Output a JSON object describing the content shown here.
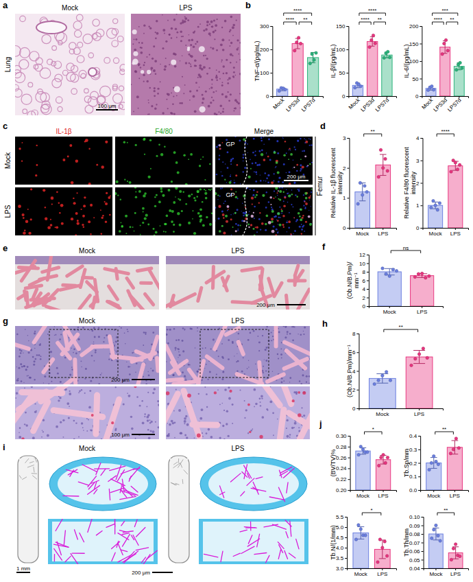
{
  "panel_letters": [
    "a",
    "b",
    "c",
    "d",
    "e",
    "f",
    "g",
    "h",
    "i",
    "j"
  ],
  "images": [
    {
      "row_label": "Lung",
      "titles": [
        "Mock",
        "LPS"
      ],
      "scale_bar": "100 μm"
    },
    {
      "channels": [
        "IL-1β",
        "F4/80",
        "Merge"
      ],
      "rows": [
        "Mock",
        "LPS"
      ],
      "tissue": "Femur",
      "region": "GP",
      "scale_bar": "200 μm"
    },
    {
      "titles": [
        "Mock",
        "LPS"
      ],
      "scale_bar": "200 μm"
    },
    {
      "titles": [
        "Mock",
        "LPS"
      ],
      "scale_bars": [
        "200 μm",
        "100 μm"
      ]
    },
    {
      "titles": [
        "Mock",
        "LPS"
      ],
      "scale_bars": [
        "1 mm",
        "200 μm"
      ]
    }
  ],
  "chart_data": [
    {
      "type": "bar",
      "y_label": "TNF-α/(pg/mL)",
      "categories": [
        "Mock",
        "LPS3d",
        "LPS7d"
      ],
      "values": [
        30,
        225,
        165
      ],
      "errors": [
        7,
        22,
        22
      ],
      "points": [
        [
          22,
          35,
          33,
          28
        ],
        [
          195,
          230,
          250,
          225
        ],
        [
          140,
          180,
          155,
          185
        ]
      ],
      "colors": [
        "#6b7fe0",
        "#e8357f",
        "#2ab27b"
      ],
      "ylim": [
        0,
        300
      ],
      "yticks": [
        0,
        100,
        200,
        300
      ],
      "annotations": [
        {
          "between": [
            "Mock",
            "LPS7d"
          ],
          "text": "****"
        },
        {
          "between": [
            "Mock",
            "LPS3d"
          ],
          "text": "****"
        },
        {
          "between": [
            "LPS3d",
            "LPS7d"
          ],
          "text": "**"
        }
      ]
    },
    {
      "type": "bar",
      "y_label": "IL-β/(pg/mL)",
      "categories": [
        "Mock",
        "LPS3d",
        "LPS7d"
      ],
      "values": [
        23,
        117,
        88
      ],
      "errors": [
        5,
        10,
        6
      ],
      "points": [
        [
          18,
          28,
          25,
          21
        ],
        [
          105,
          120,
          130,
          113
        ],
        [
          82,
          92,
          95,
          83
        ]
      ],
      "colors": [
        "#6b7fe0",
        "#e8357f",
        "#2ab27b"
      ],
      "ylim": [
        0,
        150
      ],
      "yticks": [
        0,
        50,
        100,
        150
      ],
      "annotations": [
        {
          "between": [
            "Mock",
            "LPS7d"
          ],
          "text": "****"
        },
        {
          "between": [
            "Mock",
            "LPS3d"
          ],
          "text": "****"
        },
        {
          "between": [
            "LPS3d",
            "LPS7d"
          ],
          "text": "**"
        }
      ]
    },
    {
      "type": "bar",
      "y_label": "IL-6/(pg/mL)",
      "categories": [
        "Mock",
        "LPS3d",
        "LPS7d"
      ],
      "values": [
        22,
        140,
        85
      ],
      "errors": [
        5,
        18,
        10
      ],
      "points": [
        [
          17,
          25,
          28,
          18
        ],
        [
          120,
          150,
          160,
          130
        ],
        [
          75,
          90,
          95,
          80
        ]
      ],
      "colors": [
        "#6b7fe0",
        "#e8357f",
        "#2ab27b"
      ],
      "ylim": [
        0,
        200
      ],
      "yticks": [
        0,
        50,
        100,
        150,
        200
      ],
      "annotations": [
        {
          "between": [
            "Mock",
            "LPS7d"
          ],
          "text": "***"
        },
        {
          "between": [
            "Mock",
            "LPS3d"
          ],
          "text": "****"
        },
        {
          "between": [
            "LPS3d",
            "LPS7d"
          ],
          "text": "**"
        }
      ]
    },
    {
      "type": "bar",
      "y_label": "Relative IL-1β fluorescent intensity",
      "categories": [
        "Mock",
        "LPS"
      ],
      "values": [
        1.2,
        2.1
      ],
      "errors": [
        0.3,
        0.35
      ],
      "points": [
        [
          0.8,
          1.5,
          1.1,
          1.4,
          1.2
        ],
        [
          1.7,
          2.6,
          2.0,
          2.3,
          1.9
        ]
      ],
      "colors": [
        "#6b7fe0",
        "#e8357f"
      ],
      "ylim": [
        0,
        3
      ],
      "yticks": [
        0,
        1,
        2,
        3
      ],
      "annotations": [
        {
          "between": [
            "Mock",
            "LPS"
          ],
          "text": "**"
        }
      ]
    },
    {
      "type": "bar",
      "y_label": "Relative F4/80 fluorescent intensity",
      "categories": [
        "Mock",
        "LPS"
      ],
      "values": [
        1.0,
        2.76
      ],
      "errors": [
        0.15,
        0.2
      ],
      "points": [
        [
          0.9,
          1.2,
          1.0,
          0.8,
          1.1
        ],
        [
          2.5,
          3.0,
          2.9,
          2.6,
          2.8
        ]
      ],
      "colors": [
        "#6b7fe0",
        "#e8357f"
      ],
      "ylim": [
        0,
        4
      ],
      "yticks": [
        0,
        1,
        2,
        3,
        4
      ],
      "annotations": [
        {
          "between": [
            "Mock",
            "LPS"
          ],
          "text": "****"
        }
      ]
    },
    {
      "type": "bar",
      "y_label": "(Ob.N/B.Pm)/mm⁻¹",
      "categories": [
        "Mock",
        "LPS"
      ],
      "values": [
        8.0,
        7.1
      ],
      "errors": [
        0.75,
        0.45
      ],
      "points": [
        [
          8.8,
          7.5,
          7.0,
          8.5,
          8.2
        ],
        [
          6.8,
          7.5,
          7.6,
          6.6,
          7.0
        ]
      ],
      "colors": [
        "#6b7fe0",
        "#e8357f"
      ],
      "ylim": [
        0,
        12
      ],
      "yticks": [
        0,
        2,
        4,
        6,
        8,
        10,
        12
      ],
      "annotations": [
        {
          "between": [
            "Mock",
            "LPS"
          ],
          "text": "ns"
        }
      ]
    },
    {
      "type": "bar",
      "y_label": "(Ob.N/B.Pm)/mm⁻¹",
      "categories": [
        "Mock",
        "LPS"
      ],
      "values": [
        3.2,
        5.5
      ],
      "errors": [
        0.5,
        0.7
      ],
      "points": [
        [
          2.6,
          3.0,
          3.5,
          3.9,
          3.0
        ],
        [
          4.6,
          5.3,
          5.8,
          6.4,
          5.4
        ]
      ],
      "colors": [
        "#6b7fe0",
        "#e8357f"
      ],
      "ylim": [
        0,
        8
      ],
      "yticks": [
        0,
        2,
        4,
        6,
        8
      ],
      "annotations": [
        {
          "between": [
            "Mock",
            "LPS"
          ],
          "text": "**"
        }
      ]
    },
    {
      "type": "bar",
      "y_label": "(BV/TV)%",
      "categories": [
        "Mock",
        "LPS"
      ],
      "values": [
        0.272,
        0.256
      ],
      "errors": [
        0.006,
        0.008
      ],
      "points": [
        [
          0.265,
          0.28,
          0.275,
          0.27,
          0.27
        ],
        [
          0.245,
          0.26,
          0.265,
          0.25,
          0.26
        ]
      ],
      "colors": [
        "#6b7fe0",
        "#e8357f"
      ],
      "ylim": [
        0.2,
        0.3
      ],
      "yticks": [
        {
          "value": 0.2,
          "label": "0.20"
        },
        0.22,
        0.24,
        0.26,
        0.28,
        {
          "value": 0.3,
          "label": "0.30"
        }
      ],
      "annotations": [
        {
          "between": [
            "Mock",
            "LPS"
          ],
          "text": "*"
        }
      ]
    },
    {
      "type": "bar",
      "y_label": "Tb.Sp/mm",
      "categories": [
        "Mock",
        "LPS"
      ],
      "values": [
        0.2,
        0.315
      ],
      "errors": [
        0.04,
        0.05
      ],
      "points": [
        [
          0.15,
          0.2,
          0.25,
          0.21,
          0.19
        ],
        [
          0.27,
          0.3,
          0.38,
          0.31
        ]
      ],
      "colors": [
        "#6b7fe0",
        "#e8357f"
      ],
      "ylim": [
        0,
        0.4
      ],
      "yticks": [
        {
          "value": 0,
          "label": "0.0"
        },
        0.1,
        0.2,
        0.3,
        0.4
      ],
      "annotations": [
        {
          "between": [
            "Mock",
            "LPS"
          ],
          "text": "**"
        }
      ]
    },
    {
      "type": "bar",
      "y_label": "Tb.N/(1/mm)",
      "categories": [
        "Mock",
        "LPS"
      ],
      "values": [
        4.72,
        3.92
      ],
      "errors": [
        0.3,
        0.45
      ],
      "points": [
        [
          4.4,
          5.1,
          4.9,
          4.6,
          4.6
        ],
        [
          3.3,
          4.4,
          4.0,
          4.3,
          3.6
        ]
      ],
      "colors": [
        "#6b7fe0",
        "#e8357f"
      ],
      "ylim": [
        3.0,
        5.5
      ],
      "yticks": [
        {
          "value": 3,
          "label": "3.0"
        },
        3.5,
        {
          "value": 4,
          "label": "4.0"
        },
        4.5,
        {
          "value": 5,
          "label": "5.0"
        },
        5.5
      ],
      "annotations": [
        {
          "between": [
            "Mock",
            "LPS"
          ],
          "text": "*"
        }
      ]
    },
    {
      "type": "bar",
      "y_label": "Tb.Th/mm",
      "categories": [
        "Mock",
        "LPS"
      ],
      "values": [
        0.08,
        0.058
      ],
      "errors": [
        0.007,
        0.007
      ],
      "points": [
        [
          0.075,
          0.085,
          0.09,
          0.078,
          0.072
        ],
        [
          0.05,
          0.063,
          0.068,
          0.055,
          0.054
        ]
      ],
      "colors": [
        "#6b7fe0",
        "#e8357f"
      ],
      "ylim": [
        0.04,
        0.1
      ],
      "yticks": [
        0.04,
        0.05,
        0.06,
        0.07,
        0.08,
        0.09,
        {
          "value": 0.1,
          "label": "0.10"
        }
      ],
      "annotations": [
        {
          "between": [
            "Mock",
            "LPS"
          ],
          "text": "**"
        }
      ]
    }
  ]
}
